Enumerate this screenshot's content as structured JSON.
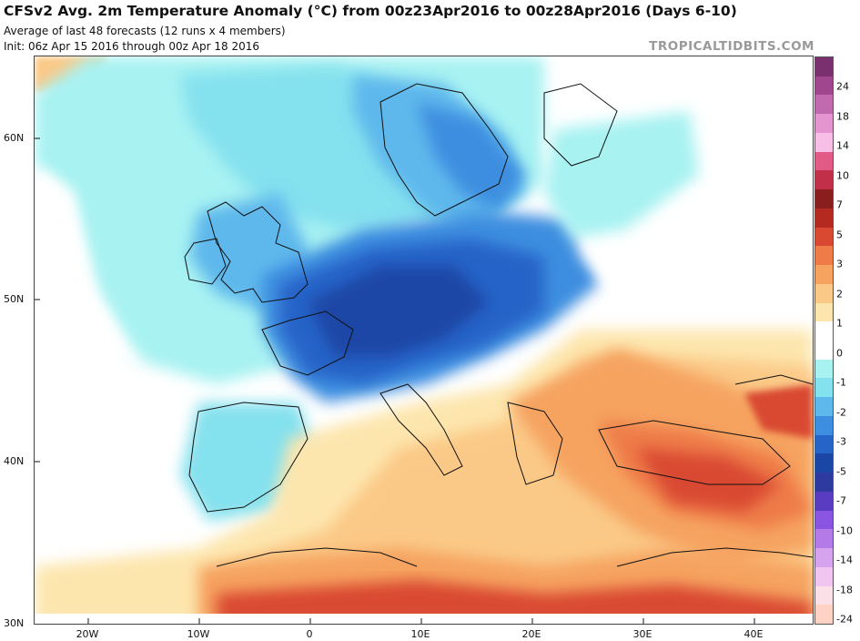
{
  "header": {
    "title": "CFSv2 Avg. 2m Temperature Anomaly (°C) from 00z23Apr2016 to 00z28Apr2016 (Days 6-10)",
    "subtitle1": "Average of last 48 forecasts (12 runs x 4 members)",
    "subtitle2": "Init: 06z Apr 15 2016 through 00z Apr 18 2016",
    "brand": "TROPICALTIDBITS.COM"
  },
  "map": {
    "lat_labels": [
      "60N",
      "50N",
      "40N",
      "30N"
    ],
    "lon_labels": [
      "20W",
      "10W",
      "0",
      "10E",
      "20E",
      "30E",
      "40E"
    ],
    "lat_range": [
      30,
      65
    ],
    "lon_range": [
      -25,
      45
    ]
  },
  "colorbar": {
    "labels": [
      "24",
      "18",
      "14",
      "10",
      "7",
      "5",
      "3",
      "2",
      "1",
      "0",
      "-1",
      "-2",
      "-3",
      "-5",
      "-7",
      "-10",
      "-14",
      "-18",
      "-24"
    ],
    "colors": [
      "#7a2f6e",
      "#a0468f",
      "#c26ab0",
      "#e494cf",
      "#f7bfe6",
      "#e25a86",
      "#c13048",
      "#8a1d1d",
      "#b52a20",
      "#d94830",
      "#ee7b48",
      "#f6a360",
      "#fbc987",
      "#fde6ae",
      "#ffffff",
      "#ffffff",
      "#a8f2f2",
      "#84e1ee",
      "#5fb8ec",
      "#3d8ee0",
      "#2664c8",
      "#1a47a6",
      "#2f3aa0",
      "#5a3cc0",
      "#8a55e0",
      "#b47ae8",
      "#d6a4ef",
      "#f0c6f0",
      "#fbe0e8",
      "#ffd2c6"
    ]
  }
}
